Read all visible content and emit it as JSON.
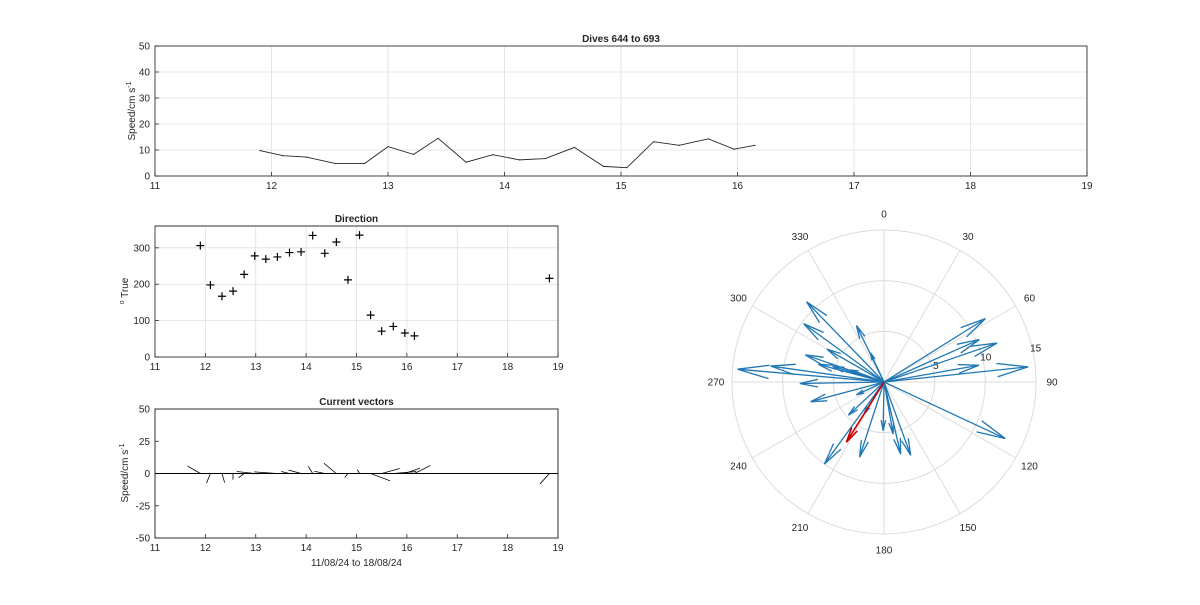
{
  "colors": {
    "arrow": "#1f77b4",
    "mean_arrow": "#cc0000",
    "line": "#262626",
    "grid": "#dfdfdf"
  },
  "chart_data": [
    {
      "type": "line",
      "title": "Dives 644 to 693",
      "ylabel": "Speed/cm s",
      "ylabel_sup": "-1",
      "xlim": [
        11,
        19
      ],
      "ylim": [
        0,
        50
      ],
      "xticks": [
        "11",
        "12",
        "13",
        "14",
        "15",
        "16",
        "17",
        "18",
        "19"
      ],
      "yticks": [
        "0",
        "10",
        "20",
        "30",
        "40",
        "50"
      ],
      "grid": true,
      "x": [
        11.9,
        12.1,
        12.3,
        12.55,
        12.8,
        13.0,
        13.22,
        13.43,
        13.67,
        13.9,
        14.13,
        14.35,
        14.6,
        14.85,
        15.05,
        15.28,
        15.5,
        15.75,
        15.97,
        16.15
      ],
      "y": [
        9.8,
        7.8,
        7.3,
        4.8,
        4.8,
        11.3,
        8.3,
        14.5,
        5.3,
        8.2,
        6.2,
        6.7,
        11.0,
        3.7,
        3.2,
        13.2,
        11.8,
        14.3,
        10.3,
        11.8
      ]
    },
    {
      "type": "scatter",
      "title": "Direction",
      "ylabel": "o True",
      "xlim": [
        11,
        19
      ],
      "ylim": [
        0,
        360
      ],
      "xticks": [
        "11",
        "12",
        "13",
        "14",
        "15",
        "16",
        "17",
        "18",
        "19"
      ],
      "yticks": [
        "0",
        "100",
        "200",
        "300"
      ],
      "grid": true,
      "x": [
        11.9,
        12.1,
        12.33,
        12.55,
        12.77,
        12.98,
        13.2,
        13.43,
        13.67,
        13.9,
        14.13,
        14.37,
        14.6,
        14.83,
        15.06,
        15.28,
        15.5,
        15.73,
        15.96,
        16.15,
        18.83
      ],
      "y": [
        306,
        198,
        167,
        181,
        227,
        278,
        269,
        275,
        287,
        289,
        334,
        285,
        316,
        212,
        335,
        115,
        71,
        84,
        66,
        58,
        216
      ]
    },
    {
      "type": "quiver",
      "title": "Current vectors",
      "xlabel": "11/08/24 to 18/08/24",
      "ylabel": "Speed/cm s",
      "ylabel_sup": "-1",
      "xlim": [
        11,
        19
      ],
      "ylim": [
        -50,
        50
      ],
      "xticks": [
        "11",
        "12",
        "13",
        "14",
        "15",
        "16",
        "17",
        "18",
        "19"
      ],
      "yticks": [
        "-50",
        "-25",
        "0",
        "25",
        "50"
      ],
      "x": [
        11.9,
        12.1,
        12.33,
        12.55,
        12.77,
        12.98,
        13.2,
        13.43,
        13.67,
        13.9,
        14.13,
        14.37,
        14.6,
        14.83,
        15.06,
        15.28,
        15.5,
        15.73,
        15.96,
        16.15,
        18.83
      ],
      "speed": [
        9.8,
        7.8,
        7.3,
        4.8,
        4.8,
        11.3,
        8.3,
        14.5,
        5.3,
        8.2,
        6.2,
        6.7,
        11.0,
        3.7,
        3.2,
        13.2,
        11.8,
        14.3,
        10.3,
        11.8,
        10.0
      ],
      "direction": [
        306,
        198,
        167,
        181,
        227,
        278,
        269,
        275,
        287,
        289,
        334,
        285,
        316,
        212,
        335,
        115,
        71,
        84,
        66,
        58,
        216
      ]
    },
    {
      "type": "compass",
      "angle_labels": [
        "0",
        "30",
        "60",
        "90",
        "120",
        "150",
        "180",
        "210",
        "240",
        "270",
        "300",
        "330"
      ],
      "radial_labels": [
        "5",
        "10",
        "15"
      ],
      "rmax": 15,
      "arrows": [
        {
          "dir": 306,
          "speed": 9.8
        },
        {
          "dir": 198,
          "speed": 7.8
        },
        {
          "dir": 167,
          "speed": 7.3
        },
        {
          "dir": 181,
          "speed": 4.8
        },
        {
          "dir": 227,
          "speed": 4.8
        },
        {
          "dir": 278,
          "speed": 11.3
        },
        {
          "dir": 269,
          "speed": 8.3
        },
        {
          "dir": 275,
          "speed": 14.5
        },
        {
          "dir": 287,
          "speed": 5.3
        },
        {
          "dir": 289,
          "speed": 8.2
        },
        {
          "dir": 334,
          "speed": 6.2
        },
        {
          "dir": 285,
          "speed": 6.7
        },
        {
          "dir": 316,
          "speed": 11.0
        },
        {
          "dir": 212,
          "speed": 3.7
        },
        {
          "dir": 335,
          "speed": 3.2
        },
        {
          "dir": 115,
          "speed": 13.2
        },
        {
          "dir": 71,
          "speed": 11.8
        },
        {
          "dir": 84,
          "speed": 14.3
        },
        {
          "dir": 66,
          "speed": 10.3
        },
        {
          "dir": 58,
          "speed": 11.8
        },
        {
          "dir": 216,
          "speed": 10.0
        },
        {
          "dir": 300,
          "speed": 6.5
        },
        {
          "dir": 255,
          "speed": 7.5
        },
        {
          "dir": 290,
          "speed": 3.5
        },
        {
          "dir": 170,
          "speed": 5.2
        },
        {
          "dir": 160,
          "speed": 7.7
        },
        {
          "dir": 80,
          "speed": 9.5
        },
        {
          "dir": 245,
          "speed": 3.0
        }
      ],
      "mean_arrow": {
        "dir": 212,
        "speed": 7.0
      }
    }
  ]
}
